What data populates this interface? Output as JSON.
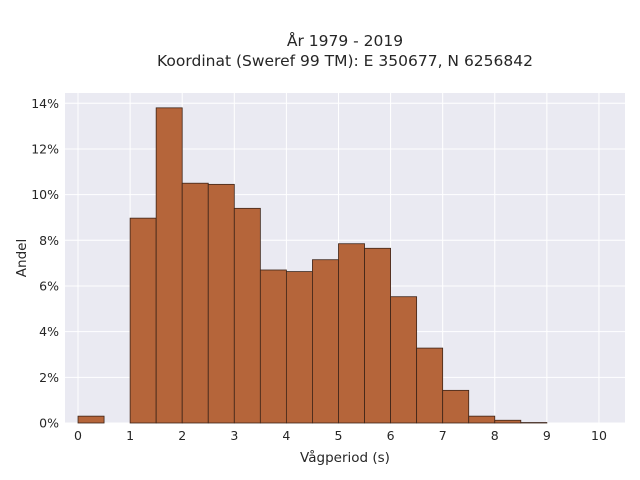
{
  "chart_data": {
    "type": "bar",
    "title_lines": [
      "År 1979 - 2019",
      "Koordinat (Sweref 99 TM): E 350677, N 6256842"
    ],
    "xlabel": "Vågperiod (s)",
    "ylabel": "Andel",
    "xlim": [
      -0.25,
      10.5
    ],
    "ylim": [
      0,
      0.1445
    ],
    "x_ticks": [
      0,
      1,
      2,
      3,
      4,
      5,
      6,
      7,
      8,
      9,
      10
    ],
    "y_ticks": [
      0,
      0.02,
      0.04,
      0.06,
      0.08,
      0.1,
      0.12,
      0.14
    ],
    "y_tick_labels": [
      "0%",
      "2%",
      "4%",
      "6%",
      "8%",
      "10%",
      "12%",
      "14%"
    ],
    "bin_width": 0.5,
    "bin_starts": [
      0,
      0.5,
      1.0,
      1.5,
      2.0,
      2.5,
      3.0,
      3.5,
      4.0,
      4.5,
      5.0,
      5.5,
      6.0,
      6.5,
      7.0,
      7.5,
      8.0,
      8.5
    ],
    "values": [
      0.003,
      0,
      0.0897,
      0.138,
      0.105,
      0.1045,
      0.094,
      0.067,
      0.0663,
      0.0715,
      0.0785,
      0.0765,
      0.0553,
      0.0328,
      0.0143,
      0.003,
      0.0012,
      0.0002
    ],
    "colors": {
      "bar_fill": "#b5653a",
      "bar_edge": "#3d2418",
      "plot_background": "#eaeaf2",
      "grid": "#ffffff"
    },
    "grid": true
  }
}
